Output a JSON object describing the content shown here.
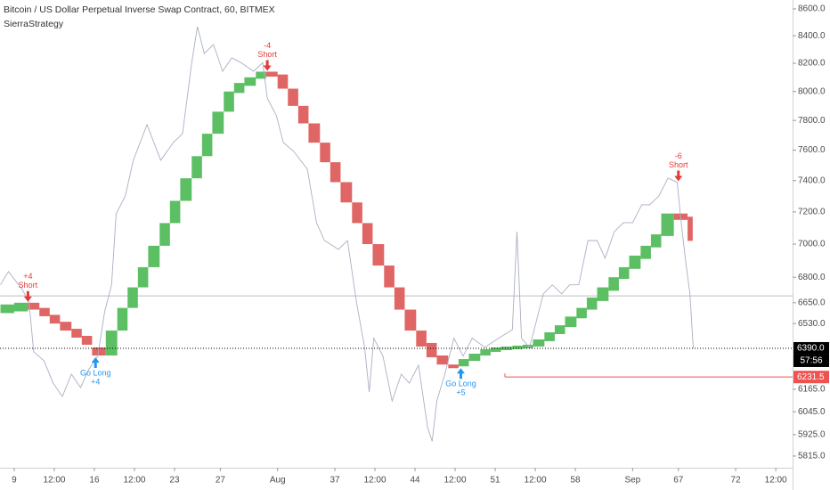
{
  "chart_data": {
    "type": "renko",
    "title": "Bitcoin / US Dollar Perpetual Inverse Swap Contract, 60, BITMEX",
    "subtitle": "SierraStrategy",
    "log_scale": true,
    "grid": false,
    "xlim": [
      7.76,
      76.97
    ],
    "ylim": [
      5756,
      8667
    ],
    "xticks": [
      9,
      {
        "value": 12.5,
        "label": "12:00"
      },
      16,
      {
        "value": 19.5,
        "label": "12:00"
      },
      23,
      27,
      {
        "value": 32,
        "label": "Aug"
      },
      37,
      {
        "value": 40.5,
        "label": "12:00"
      },
      44,
      {
        "value": 47.5,
        "label": "12:00"
      },
      51,
      {
        "value": 54.5,
        "label": "12:00"
      },
      58,
      {
        "value": 63,
        "label": "Sep"
      },
      67,
      72,
      {
        "value": 75.5,
        "label": "12:00"
      }
    ],
    "yticks": [
      {
        "value": 8600,
        "label": "8600.0"
      },
      {
        "value": 8400,
        "label": "8400.0"
      },
      {
        "value": 8200,
        "label": "8200.0"
      },
      {
        "value": 8000,
        "label": "8000.0"
      },
      {
        "value": 7800,
        "label": "7800.0"
      },
      {
        "value": 7600,
        "label": "7600.0"
      },
      {
        "value": 7400,
        "label": "7400.0"
      },
      {
        "value": 7200,
        "label": "7200.0"
      },
      {
        "value": 7000,
        "label": "7000.0"
      },
      {
        "value": 6800,
        "label": "6800.0"
      },
      {
        "value": 6650,
        "label": "6650.0"
      },
      {
        "value": 6530,
        "label": "6530.0"
      },
      {
        "value": 6165,
        "label": "6165.0"
      },
      {
        "value": 6045,
        "label": "6045.0"
      },
      {
        "value": 5925,
        "label": "5925.0"
      },
      {
        "value": 5815,
        "label": "5815.0"
      }
    ],
    "up_color": "#5cbf63",
    "down_color": "#e06565",
    "bricks": {
      "x": [
        7.8,
        9.0,
        10.2,
        11.2,
        12.1,
        13.0,
        14.0,
        14.9,
        15.8,
        17.0,
        18.0,
        18.9,
        19.8,
        20.7,
        21.7,
        22.6,
        23.5,
        24.5,
        25.4,
        26.3,
        27.3,
        28.2,
        29.1,
        30.1,
        31.0,
        32.0,
        32.9,
        33.8,
        34.7,
        35.7,
        36.6,
        37.5,
        38.5,
        39.4,
        40.3,
        41.3,
        42.2,
        43.1,
        44.1,
        45.0,
        45.9,
        46.9,
        47.8,
        48.7,
        49.7,
        50.6,
        51.5,
        52.5,
        53.4,
        54.3,
        55.3,
        56.2,
        57.1,
        58.1,
        59.0,
        59.9,
        60.9,
        61.8,
        62.7,
        63.7,
        64.6,
        65.5,
        66.6,
        67.8
      ],
      "open": [
        6590,
        6600,
        6650,
        6620,
        6580,
        6540,
        6500,
        6460,
        6395,
        6350,
        6490,
        6620,
        6740,
        6860,
        6990,
        7130,
        7270,
        7415,
        7560,
        7710,
        7860,
        7990,
        8040,
        8090,
        8140,
        8120,
        8020,
        7900,
        7780,
        7650,
        7520,
        7390,
        7260,
        7130,
        7000,
        6870,
        6740,
        6610,
        6490,
        6420,
        6350,
        6300,
        6290,
        6320,
        6350,
        6370,
        6380,
        6385,
        6390,
        6400,
        6430,
        6470,
        6510,
        6560,
        6610,
        6660,
        6720,
        6790,
        6850,
        6910,
        6980,
        7050,
        7190,
        7170
      ],
      "close": [
        6640,
        6650,
        6610,
        6572,
        6530,
        6490,
        6450,
        6410,
        6350,
        6490,
        6620,
        6740,
        6860,
        6990,
        7130,
        7270,
        7415,
        7560,
        7710,
        7860,
        8000,
        8060,
        8100,
        8140,
        8105,
        8020,
        7900,
        7780,
        7650,
        7520,
        7390,
        7260,
        7130,
        7000,
        6870,
        6740,
        6610,
        6490,
        6400,
        6340,
        6300,
        6280,
        6330,
        6360,
        6385,
        6395,
        6400,
        6405,
        6410,
        6440,
        6480,
        6520,
        6570,
        6620,
        6680,
        6740,
        6800,
        6860,
        6930,
        6990,
        7060,
        7190,
        7150,
        7020
      ]
    },
    "price": {
      "color": "#aab0c4",
      "x": [
        7.8,
        8.5,
        9.7,
        10.3,
        10.7,
        11.6,
        12.4,
        13.2,
        14.0,
        14.8,
        15.5,
        16.3,
        16.9,
        17.5,
        17.9,
        18.7,
        19.4,
        20.6,
        21.8,
        22.9,
        23.7,
        24.5,
        25.0,
        25.6,
        26.4,
        27.2,
        28.0,
        28.8,
        29.9,
        30.7,
        31.1,
        31.9,
        32.5,
        33.4,
        34.6,
        35.4,
        36.1,
        37.3,
        38.1,
        38.9,
        39.6,
        40.0,
        40.4,
        41.2,
        42.0,
        42.8,
        43.5,
        44.3,
        45.1,
        45.5,
        45.9,
        46.6,
        47.4,
        48.2,
        49.0,
        50.1,
        51.3,
        52.5,
        52.9,
        53.3,
        54.0,
        54.4,
        55.2,
        56.0,
        56.8,
        57.5,
        58.3,
        59.1,
        59.9,
        60.6,
        61.4,
        62.2,
        63.0,
        63.8,
        64.5,
        65.3,
        66.1,
        66.9,
        67.2,
        67.6,
        68.0,
        68.3
      ],
      "values": [
        6755,
        6834,
        6728,
        6650,
        6371,
        6321,
        6198,
        6126,
        6247,
        6174,
        6272,
        6346,
        6598,
        6755,
        7188,
        7302,
        7533,
        7771,
        7533,
        7651,
        7711,
        8205,
        8467,
        8270,
        8336,
        8143,
        8239,
        8205,
        8143,
        8205,
        7955,
        7832,
        7651,
        7592,
        7475,
        7133,
        7022,
        6968,
        7022,
        6650,
        6395,
        6150,
        6447,
        6346,
        6102,
        6247,
        6198,
        6296,
        5961,
        5891,
        6102,
        6247,
        6447,
        6346,
        6447,
        6395,
        6447,
        6495,
        7077,
        6447,
        6395,
        6495,
        6702,
        6755,
        6702,
        6755,
        6755,
        7022,
        7022,
        6914,
        7077,
        7133,
        7133,
        7245,
        7245,
        7302,
        7417,
        7388,
        7160,
        6914,
        6702,
        6390
      ]
    },
    "long_color": "#2196f3",
    "short_color": "#e53935",
    "signals": [
      {
        "x": 10.2,
        "price": 6650,
        "direction": "short",
        "count": "+4",
        "label": "Short"
      },
      {
        "x": 16.1,
        "price": 6350,
        "direction": "long",
        "count": "+4",
        "label": "Go Long"
      },
      {
        "x": 31.1,
        "price": 8140,
        "direction": "short",
        "count": "-4",
        "label": "Short"
      },
      {
        "x": 48.0,
        "price": 6290,
        "direction": "long",
        "count": "+5",
        "label": "Go Long"
      },
      {
        "x": 67.0,
        "price": 7390,
        "direction": "short",
        "count": "-6",
        "label": "Short"
      }
    ],
    "reference_line": {
      "value": 6690,
      "color": "#bdbdbd"
    },
    "price_lines": [
      {
        "value": 6390,
        "label": "6390.0",
        "color": "#000000",
        "style": "dotted"
      },
      {
        "value": 6231.5,
        "label": "6231.5",
        "color": "#ef5350",
        "style": "solid",
        "x_start": 51.85
      }
    ],
    "countdown": "57:56"
  }
}
